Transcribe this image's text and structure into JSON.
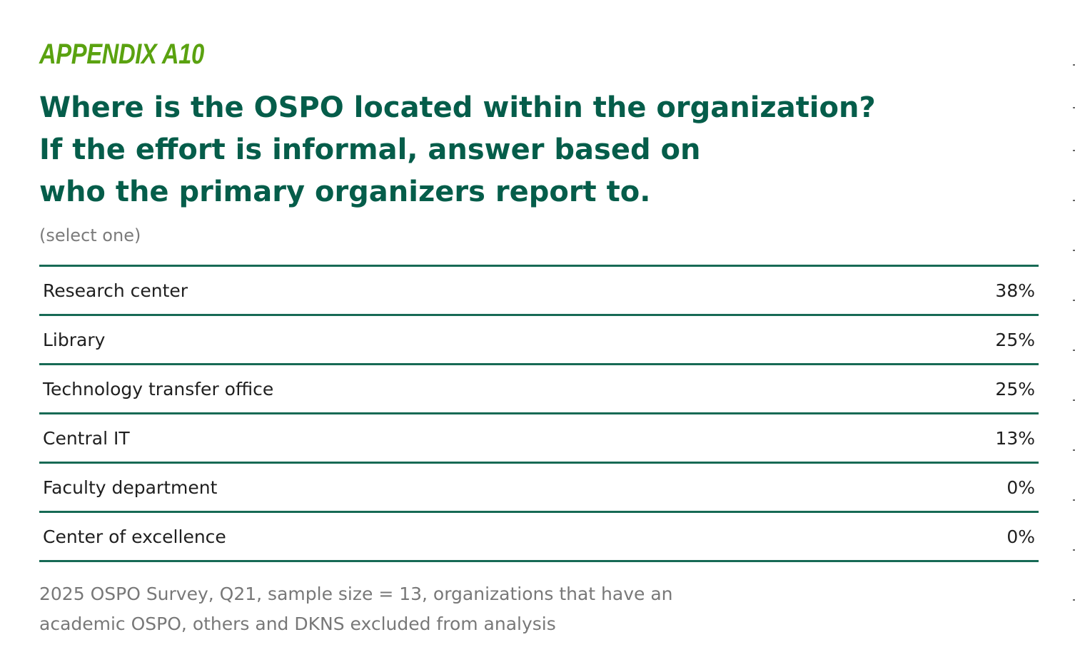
{
  "appendix_label": "APPENDIX A10",
  "question": {
    "lines": [
      "Where is the OSPO located within the organization?",
      "If the effort is informal, answer based on",
      "who the primary organizers report to."
    ]
  },
  "qualifier": "(select one)",
  "colors": {
    "appendix": "#5aa210",
    "question": "#055d4a",
    "rule": "#176a55",
    "muted": "#787878"
  },
  "table": {
    "rows": [
      {
        "label": "Research center",
        "value": "38%"
      },
      {
        "label": "Library",
        "value": "25%"
      },
      {
        "label": "Technology transfer office",
        "value": "25%"
      },
      {
        "label": "Central IT",
        "value": "13%"
      },
      {
        "label": "Faculty department",
        "value": "0%"
      },
      {
        "label": "Center of excellence",
        "value": "0%"
      }
    ]
  },
  "source": {
    "lines": [
      "2025 OSPO Survey, Q21, sample size = 13, organizations that have an",
      "academic OSPO, others and DKNS excluded from analysis"
    ]
  }
}
